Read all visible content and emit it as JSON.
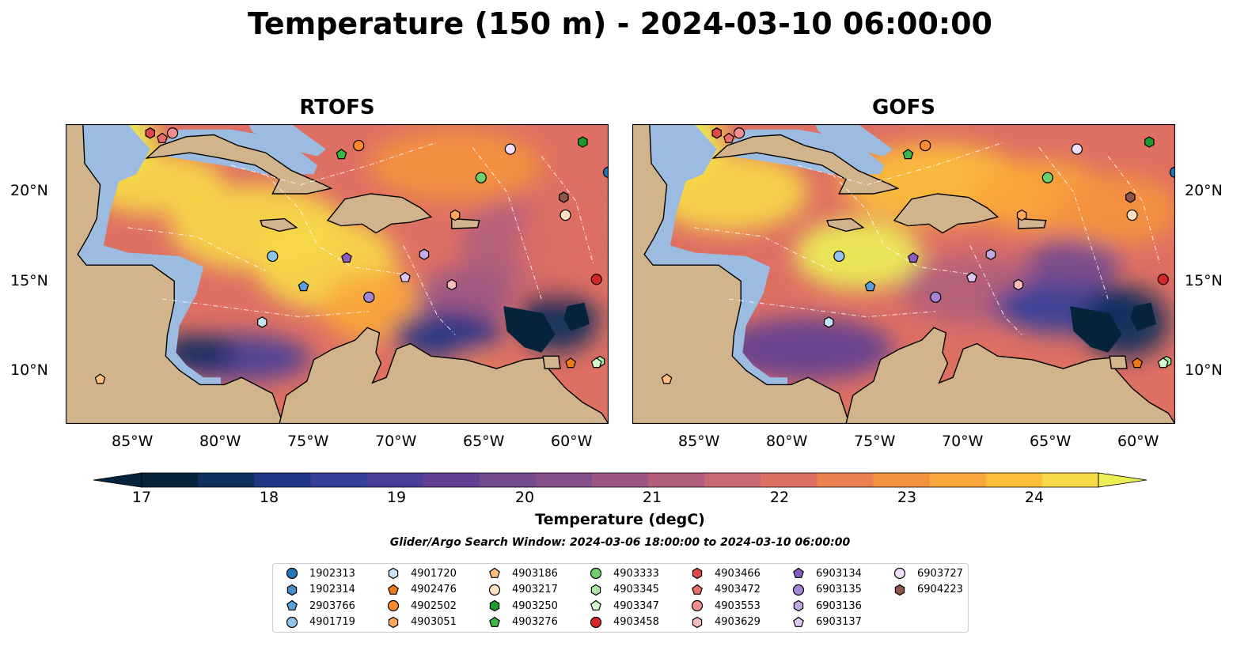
{
  "title": "Temperature (150 m) - 2024-03-10 06:00:00",
  "panels": [
    {
      "title": "RTOFS"
    },
    {
      "title": "GOFS"
    }
  ],
  "x_ticks": [
    "85°W",
    "80°W",
    "75°W",
    "70°W",
    "65°W",
    "60°W"
  ],
  "y_ticks": [
    "20°N",
    "15°N",
    "10°N"
  ],
  "colorbar": {
    "label": "Temperature (degC)",
    "ticks": [
      "17",
      "18",
      "19",
      "20",
      "21",
      "22",
      "23",
      "24"
    ],
    "colors": [
      "#05233a",
      "#0f2f5c",
      "#213686",
      "#34409a",
      "#4a3f98",
      "#613f92",
      "#744a8e",
      "#86508a",
      "#9c5684",
      "#b25e7c",
      "#c86873",
      "#de6f63",
      "#ed7f50",
      "#f5923e",
      "#faa63a",
      "#fcbe3b",
      "#f7d846",
      "#ebef56"
    ]
  },
  "search_window": "Glider/Argo Search Window: 2024-03-06 18:00:00 to 2024-03-10 06:00:00",
  "legend": [
    {
      "id": "1902313",
      "marker": "circle",
      "color": "#1f77b4"
    },
    {
      "id": "1902314",
      "marker": "hexagon",
      "color": "#4a8cc7"
    },
    {
      "id": "2903766",
      "marker": "pentagon",
      "color": "#5aa0d8"
    },
    {
      "id": "4901719",
      "marker": "circle",
      "color": "#8fc3ec"
    },
    {
      "id": "4901720",
      "marker": "hexagon",
      "color": "#c6e4f7"
    },
    {
      "id": "4902476",
      "marker": "pentagon",
      "color": "#f07a1a"
    },
    {
      "id": "4902502",
      "marker": "circle",
      "color": "#ff8c2e"
    },
    {
      "id": "4903051",
      "marker": "hexagon",
      "color": "#ffa85c"
    },
    {
      "id": "4903186",
      "marker": "pentagon",
      "color": "#ffc07f"
    },
    {
      "id": "4903217",
      "marker": "circle",
      "color": "#ffe0c0"
    },
    {
      "id": "4903250",
      "marker": "hexagon",
      "color": "#1f9a2e"
    },
    {
      "id": "4903276",
      "marker": "pentagon",
      "color": "#3cb84a"
    },
    {
      "id": "4903333",
      "marker": "circle",
      "color": "#6fcf6a"
    },
    {
      "id": "4903345",
      "marker": "hexagon",
      "color": "#a6e8a0"
    },
    {
      "id": "4903347",
      "marker": "pentagon",
      "color": "#d4f7cf"
    },
    {
      "id": "4903458",
      "marker": "circle",
      "color": "#d62728"
    },
    {
      "id": "4903466",
      "marker": "hexagon",
      "color": "#e04848"
    },
    {
      "id": "4903472",
      "marker": "pentagon",
      "color": "#ec6b6b"
    },
    {
      "id": "4903553",
      "marker": "circle",
      "color": "#f29090"
    },
    {
      "id": "4903629",
      "marker": "hexagon",
      "color": "#f8bcbc"
    },
    {
      "id": "6903134",
      "marker": "pentagon",
      "color": "#8a5cc2"
    },
    {
      "id": "6903135",
      "marker": "circle",
      "color": "#a585d6"
    },
    {
      "id": "6903136",
      "marker": "hexagon",
      "color": "#c3aae6"
    },
    {
      "id": "6903137",
      "marker": "pentagon",
      "color": "#dcc7f3"
    },
    {
      "id": "6903727",
      "marker": "circle",
      "color": "#f0e0fb"
    },
    {
      "id": "6904223",
      "marker": "hexagon",
      "color": "#8c564b"
    }
  ],
  "chart_data": {
    "type": "heatmap",
    "title": "Temperature (150 m) - 2024-03-10 06:00:00",
    "xlabel": "",
    "ylabel": "",
    "xlim": [
      -89.6,
      -58.1
    ],
    "ylim": [
      7.0,
      23.8
    ],
    "x_ticks": [
      -85,
      -80,
      -75,
      -70,
      -65,
      -60
    ],
    "y_ticks": [
      20,
      15,
      10
    ],
    "colorbar_range": [
      17,
      24.5
    ],
    "colorbar_label": "Temperature (degC)",
    "panels": [
      "RTOFS",
      "GOFS"
    ],
    "floats": [
      {
        "id": "1902313",
        "lon": -58.1,
        "lat": 21.1
      },
      {
        "id": "1902314",
        "lon": -84.7,
        "lat": 23.3
      },
      {
        "id": "2903766",
        "lon": -75.8,
        "lat": 14.7
      },
      {
        "id": "4901719",
        "lon": -77.6,
        "lat": 16.4
      },
      {
        "id": "4901720",
        "lon": -78.2,
        "lat": 12.7
      },
      {
        "id": "4902476",
        "lon": -60.3,
        "lat": 10.4
      },
      {
        "id": "4902502",
        "lon": -72.6,
        "lat": 22.6
      },
      {
        "id": "4903051",
        "lon": -67.0,
        "lat": 18.7
      },
      {
        "id": "4903186",
        "lon": -87.6,
        "lat": 9.5
      },
      {
        "id": "4903217",
        "lon": -60.6,
        "lat": 18.7
      },
      {
        "id": "4903250",
        "lon": -59.6,
        "lat": 22.8
      },
      {
        "id": "4903276",
        "lon": -73.6,
        "lat": 22.1
      },
      {
        "id": "4903333",
        "lon": -65.5,
        "lat": 20.8
      },
      {
        "id": "4903345",
        "lon": -58.6,
        "lat": 10.5
      },
      {
        "id": "4903347",
        "lon": -58.8,
        "lat": 10.4
      },
      {
        "id": "4903458",
        "lon": -58.8,
        "lat": 15.1
      },
      {
        "id": "4903466",
        "lon": -84.7,
        "lat": 23.3
      },
      {
        "id": "4903472",
        "lon": -84.0,
        "lat": 23.0
      },
      {
        "id": "4903553",
        "lon": -83.4,
        "lat": 23.3
      },
      {
        "id": "4903629",
        "lon": -67.2,
        "lat": 14.8
      },
      {
        "id": "6903134",
        "lon": -73.3,
        "lat": 16.3
      },
      {
        "id": "6903135",
        "lon": -72.0,
        "lat": 14.1
      },
      {
        "id": "6903136",
        "lon": -68.8,
        "lat": 16.5
      },
      {
        "id": "6903137",
        "lon": -69.9,
        "lat": 15.2
      },
      {
        "id": "6903727",
        "lon": -63.8,
        "lat": 22.4
      },
      {
        "id": "6904223",
        "lon": -60.7,
        "lat": 19.7
      }
    ]
  }
}
